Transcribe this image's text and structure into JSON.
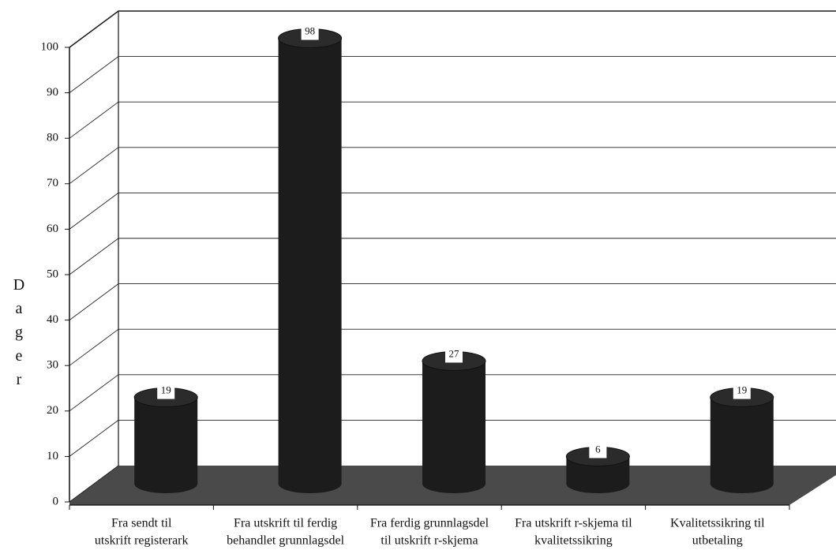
{
  "chart_data": {
    "type": "bar3d",
    "y_label": "Dager",
    "categories": [
      [
        "Fra sendt til",
        "utskrift registerark"
      ],
      [
        "Fra utskrift til ferdig",
        "behandlet grunnlagsdel"
      ],
      [
        "Fra ferdig grunnlagsdel",
        "til utskrift r-skjema"
      ],
      [
        "Fra utskrift r-skjema til",
        "kvalitetssikring"
      ],
      [
        "Kvalitetssikring til",
        "utbetaling"
      ]
    ],
    "values": [
      19,
      98,
      27,
      6,
      19
    ],
    "color": "#1c1c1c",
    "ylim": [
      0,
      100
    ],
    "yticks": [
      0,
      10,
      20,
      30,
      40,
      50,
      60,
      70,
      80,
      90,
      100
    ],
    "grid": true
  }
}
